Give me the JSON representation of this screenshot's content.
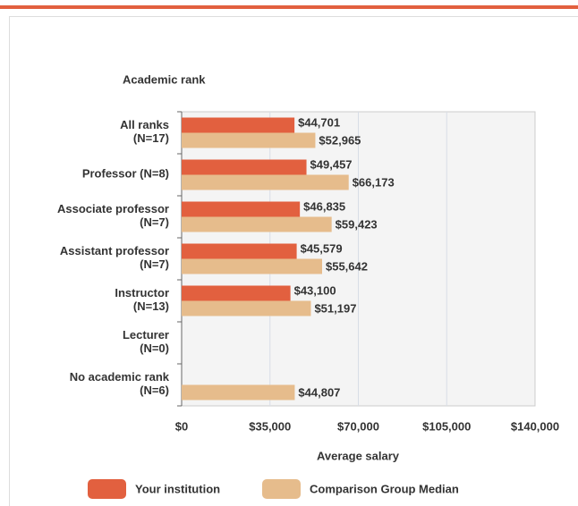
{
  "chart_data": {
    "type": "bar",
    "orientation": "horizontal",
    "title": "Academic rank",
    "x_label": "Average salary",
    "categories": [
      [
        "All ranks",
        "(N=17)"
      ],
      [
        "Professor (N=8)"
      ],
      [
        "Associate professor",
        "(N=7)"
      ],
      [
        "Assistant professor",
        "(N=7)"
      ],
      [
        "Instructor",
        "(N=13)"
      ],
      [
        "Lecturer",
        "(N=0)"
      ],
      [
        "No academic rank",
        "(N=6)"
      ]
    ],
    "series": [
      {
        "name": "Your institution",
        "color": "#e2603f",
        "values": [
          44701,
          49457,
          46835,
          45579,
          43100,
          null,
          null
        ],
        "value_labels": [
          "$44,701",
          "$49,457",
          "$46,835",
          "$45,579",
          "$43,100",
          null,
          null
        ]
      },
      {
        "name": "Comparison Group Median",
        "color": "#e6bc8c",
        "values": [
          52965,
          66173,
          59423,
          55642,
          51197,
          null,
          44807
        ],
        "value_labels": [
          "$52,965",
          "$66,173",
          "$59,423",
          "$55,642",
          "$51,197",
          null,
          "$44,807"
        ]
      }
    ],
    "xlim": [
      0,
      140000
    ],
    "xticks": [
      {
        "value": 0,
        "label": "$0"
      },
      {
        "value": 35000,
        "label": "$35,000"
      },
      {
        "value": 70000,
        "label": "$70,000"
      },
      {
        "value": 105000,
        "label": "$105,000"
      },
      {
        "value": 140000,
        "label": "$140,000"
      }
    ],
    "grid": true
  }
}
